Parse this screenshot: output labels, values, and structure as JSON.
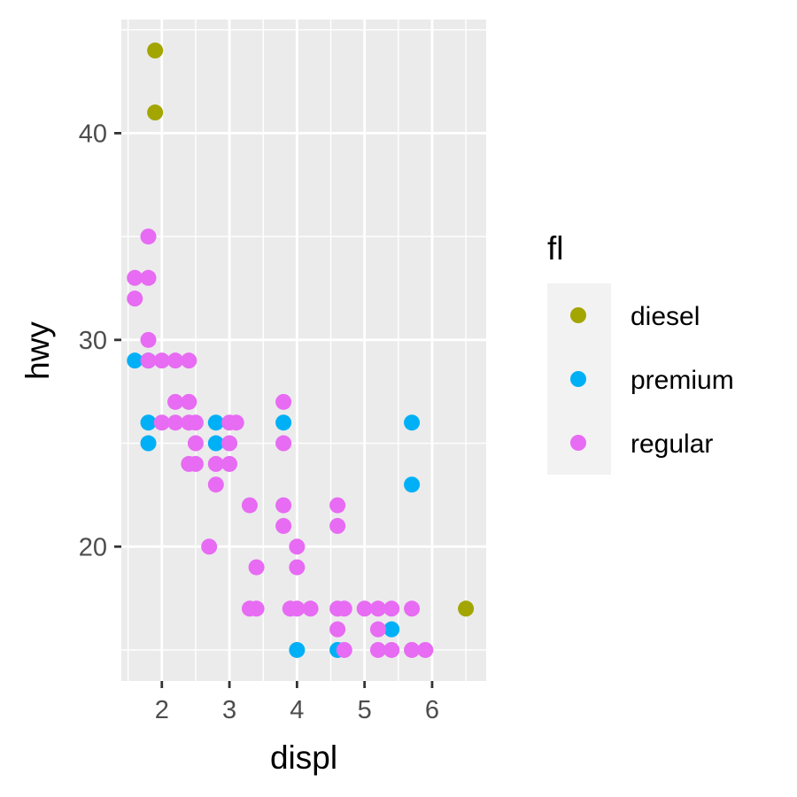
{
  "colors": {
    "diesel": "#A3A500",
    "premium": "#00B0F6",
    "regular": "#E76BF3",
    "panel_background": "#EBEBEB",
    "grid": "#FFFFFF",
    "tick": "#333333",
    "tick_label": "#4D4D4D",
    "legend_background": "#F2F2F2"
  },
  "chart_data": {
    "type": "scatter",
    "title": "",
    "xlabel": "displ",
    "ylabel": "hwy",
    "xlim": [
      1.4,
      6.8
    ],
    "ylim": [
      13.5,
      45.5
    ],
    "x_ticks": [
      2,
      3,
      4,
      5,
      6
    ],
    "y_ticks": [
      20,
      30,
      40
    ],
    "x_tick_labels": [
      "2",
      "3",
      "4",
      "5",
      "6"
    ],
    "y_tick_labels": [
      "20",
      "30",
      "40"
    ],
    "grid": true,
    "legend": {
      "title": "fl",
      "position": "right",
      "entries": [
        "diesel",
        "premium",
        "regular"
      ]
    },
    "series": [
      {
        "name": "diesel",
        "points": [
          [
            1.9,
            44
          ],
          [
            1.9,
            41
          ],
          [
            6.5,
            17
          ]
        ]
      },
      {
        "name": "premium",
        "points": [
          [
            1.6,
            29
          ],
          [
            1.8,
            29
          ],
          [
            1.8,
            26
          ],
          [
            1.8,
            25
          ],
          [
            2.8,
            26
          ],
          [
            2.8,
            25
          ],
          [
            3.8,
            26
          ],
          [
            4.0,
            15
          ],
          [
            4.6,
            15
          ],
          [
            5.4,
            16
          ],
          [
            5.7,
            26
          ],
          [
            5.7,
            23
          ]
        ]
      },
      {
        "name": "regular",
        "points": [
          [
            1.6,
            33
          ],
          [
            1.6,
            32
          ],
          [
            1.8,
            35
          ],
          [
            1.8,
            33
          ],
          [
            1.8,
            30
          ],
          [
            1.8,
            29
          ],
          [
            2.0,
            29
          ],
          [
            2.0,
            26
          ],
          [
            2.2,
            29
          ],
          [
            2.2,
            27
          ],
          [
            2.2,
            26
          ],
          [
            2.4,
            29
          ],
          [
            2.4,
            27
          ],
          [
            2.4,
            26
          ],
          [
            2.4,
            24
          ],
          [
            2.5,
            26
          ],
          [
            2.5,
            25
          ],
          [
            2.5,
            24
          ],
          [
            2.7,
            20
          ],
          [
            2.8,
            24
          ],
          [
            2.8,
            23
          ],
          [
            3.0,
            26
          ],
          [
            3.0,
            25
          ],
          [
            3.0,
            24
          ],
          [
            3.1,
            26
          ],
          [
            3.3,
            22
          ],
          [
            3.3,
            17
          ],
          [
            3.4,
            19
          ],
          [
            3.4,
            17
          ],
          [
            3.8,
            27
          ],
          [
            3.8,
            25
          ],
          [
            3.8,
            22
          ],
          [
            3.8,
            21
          ],
          [
            3.9,
            17
          ],
          [
            4.0,
            20
          ],
          [
            4.0,
            19
          ],
          [
            4.0,
            17
          ],
          [
            4.2,
            17
          ],
          [
            4.6,
            22
          ],
          [
            4.6,
            21
          ],
          [
            4.6,
            17
          ],
          [
            4.6,
            16
          ],
          [
            4.7,
            17
          ],
          [
            4.7,
            15
          ],
          [
            5.0,
            17
          ],
          [
            5.2,
            17
          ],
          [
            5.2,
            16
          ],
          [
            5.2,
            15
          ],
          [
            5.4,
            17
          ],
          [
            5.4,
            15
          ],
          [
            5.7,
            17
          ],
          [
            5.7,
            15
          ],
          [
            5.9,
            15
          ]
        ]
      }
    ]
  }
}
